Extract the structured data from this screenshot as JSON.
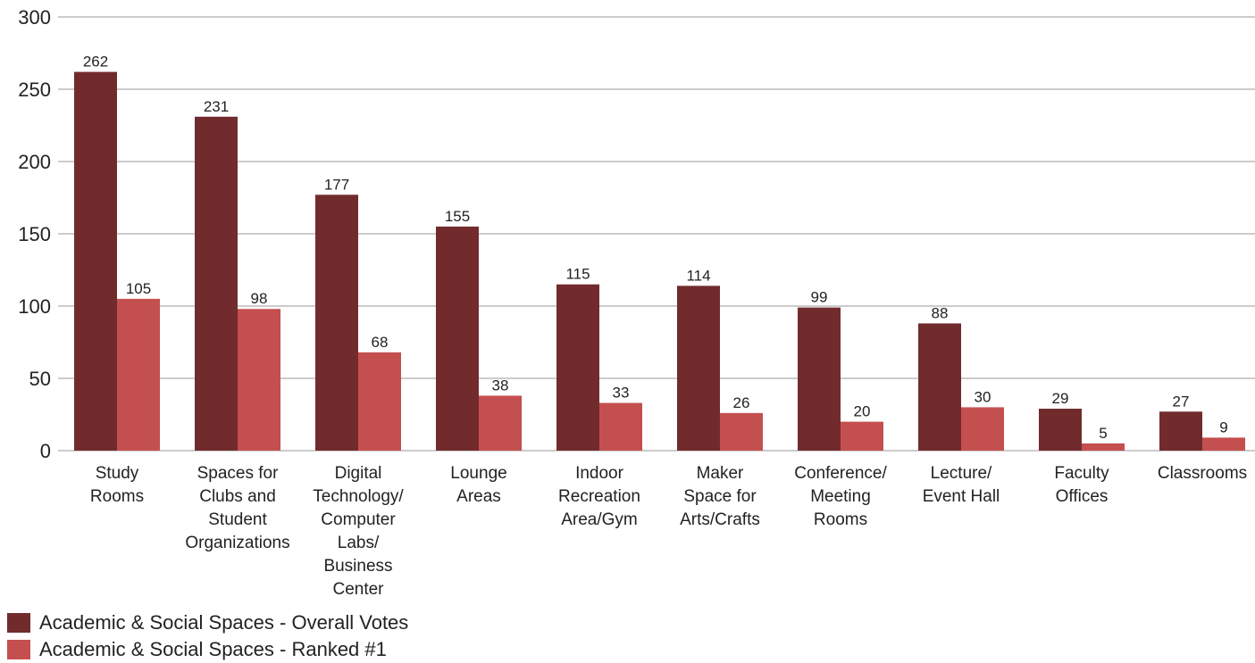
{
  "chart_data": {
    "type": "bar",
    "categories": [
      [
        "Study",
        "Rooms"
      ],
      [
        "Spaces for",
        "Clubs and",
        "Student",
        "Organizations"
      ],
      [
        "Digital",
        "Technology/",
        "Computer",
        "Labs/",
        "Business",
        "Center"
      ],
      [
        "Lounge",
        "Areas"
      ],
      [
        "Indoor",
        "Recreation",
        "Area/Gym"
      ],
      [
        "Maker",
        "Space for",
        "Arts/Crafts"
      ],
      [
        "Conference/",
        "Meeting",
        "Rooms"
      ],
      [
        "Lecture/",
        "Event Hall"
      ],
      [
        "Faculty",
        "Offices"
      ],
      [
        "Classrooms"
      ]
    ],
    "series": [
      {
        "name": "Academic & Social Spaces - Overall Votes",
        "color": "#722b2d",
        "values": [
          262,
          231,
          177,
          155,
          115,
          114,
          99,
          88,
          29,
          27
        ]
      },
      {
        "name": "Academic & Social Spaces - Ranked #1",
        "color": "#c44f4f",
        "values": [
          105,
          98,
          68,
          38,
          33,
          26,
          20,
          30,
          5,
          9
        ]
      }
    ],
    "ylim": [
      0,
      300
    ],
    "yticks": [
      0,
      50,
      100,
      150,
      200,
      250,
      300
    ],
    "grid": true,
    "legend_position": "bottom-left"
  }
}
